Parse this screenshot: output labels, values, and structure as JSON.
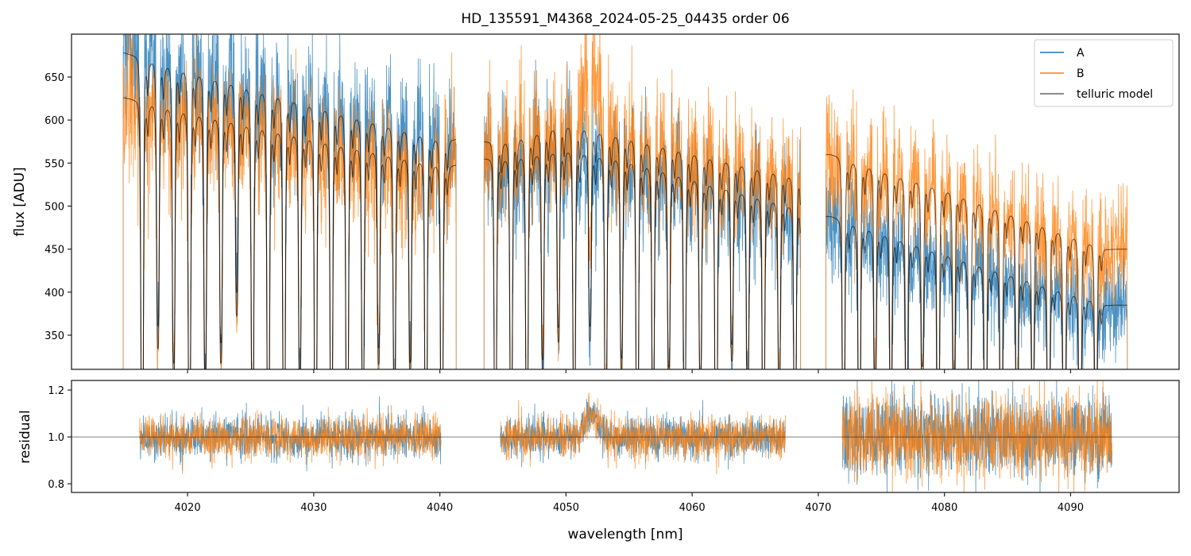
{
  "chart_data": [
    {
      "type": "line",
      "panel": "spectrum",
      "title": "HD_135591_M4368_2024-05-25_04435  order 06",
      "xlabel": "",
      "ylabel": "flux [ADU]",
      "xlim": [
        4010.8,
        4098.6
      ],
      "ylim": [
        310.3,
        699.8
      ],
      "xticks": [
        4020,
        4030,
        4040,
        4050,
        4060,
        4070,
        4080,
        4090
      ],
      "yticks": [
        350,
        400,
        450,
        500,
        550,
        600,
        650
      ],
      "ytick_labels": [
        "350",
        "400",
        "450",
        "500",
        "550",
        "600",
        "650"
      ],
      "grid": false,
      "legend": {
        "placement": "top-right",
        "entries": [
          "A",
          "B",
          "telluric model"
        ]
      },
      "colors": {
        "A": "#1f77b4",
        "B": "#ff7f0e",
        "telluric model": "#000000"
      },
      "segments": [
        {
          "range": [
            4014.9,
            4041.3
          ],
          "continuum_A": [
            [
              4015,
              678
            ],
            [
              4040,
              578
            ]
          ],
          "continuum_B": [
            [
              4015,
              626
            ],
            [
              4040,
              548
            ]
          ],
          "lines": {
            "start": 4016.4,
            "spacing": 1.25,
            "count": 20
          }
        },
        {
          "range": [
            4043.5,
            4068.6
          ],
          "continuum_A": [
            [
              4045,
              555
            ],
            [
              4050,
              566
            ],
            [
              4055,
              553
            ],
            [
              4068,
              500
            ]
          ],
          "continuum_B": [
            [
              4045,
              575
            ],
            [
              4050,
              595
            ],
            [
              4055,
              580
            ],
            [
              4068,
              535
            ]
          ],
          "lines": {
            "start": 4044.4,
            "spacing": 1.25,
            "count": 20
          }
        },
        {
          "range": [
            4070.6,
            4094.5
          ],
          "continuum_A": [
            [
              4071,
              488
            ],
            [
              4080,
              445
            ],
            [
              4093,
              385
            ]
          ],
          "continuum_B": [
            [
              4071,
              560
            ],
            [
              4080,
              520
            ],
            [
              4093,
              450
            ]
          ],
          "lines": {
            "start": 4072.0,
            "spacing": 1.25,
            "count": 17
          }
        }
      ],
      "noise_fraction": {
        "A": 0.07,
        "B": 0.07
      }
    },
    {
      "type": "line",
      "panel": "residual",
      "xlabel": "wavelength [nm]",
      "ylabel": "residual",
      "xlim": [
        4010.8,
        4098.6
      ],
      "ylim": [
        0.763,
        1.241
      ],
      "xticks": [
        4020,
        4030,
        4040,
        4050,
        4060,
        4070,
        4080,
        4090
      ],
      "xtick_labels": [
        "4020",
        "4030",
        "4040",
        "4050",
        "4060",
        "4070",
        "4080",
        "4090"
      ],
      "yticks": [
        0.8,
        1.0,
        1.2
      ],
      "ytick_labels": [
        "0.8",
        "1.0",
        "1.2"
      ],
      "reference_line": 1.0,
      "segments": [
        {
          "range": [
            4016.2,
            4040.1
          ],
          "noise": 0.045
        },
        {
          "range": [
            4044.8,
            4067.4
          ],
          "noise": 0.045,
          "bump": {
            "center": 4052.0,
            "amplitude": 0.1,
            "width": 0.8
          }
        },
        {
          "range": [
            4071.9,
            4093.3
          ],
          "noise": 0.09
        }
      ]
    }
  ]
}
